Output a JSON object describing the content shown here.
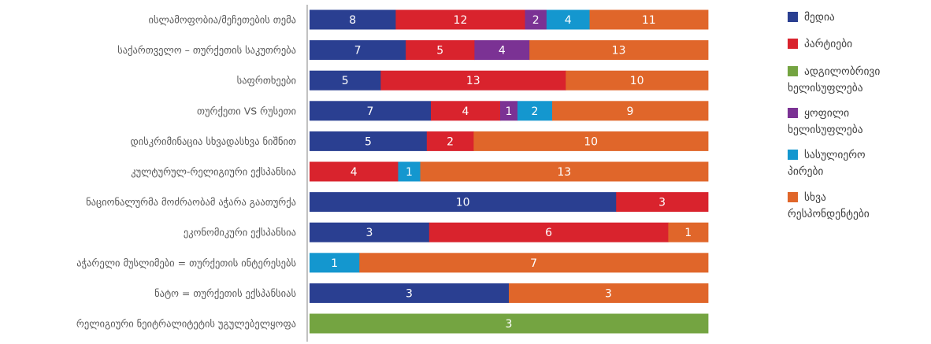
{
  "chart_data": {
    "type": "bar",
    "orientation": "horizontal",
    "stacked": "100%",
    "legend_position": "right",
    "grid": false,
    "categories": [
      "ისლამოფობია/მეჩეთების თემა",
      "საქართველო – თურქეთის საკუთრება",
      "საფრთხეები",
      "თურქეთი VS რუსეთი",
      "დისკრიმინაცია სხვადასხვა ნიშნით",
      "კულტურულ-რელიგიური ექსპანსია",
      "ნაციონალურმა მოძრაობამ აჭარა გაათურქა",
      "ეკონომიკური ექსპანსია",
      "აჭარელი მუსლიმები = თურქეთის ინტერესებს",
      "ნატო = თურქეთის ექსპანსიას",
      "რელიგიური ნეიტრალიტეტის უგულებელყოფა"
    ],
    "series": [
      {
        "name": "მედია",
        "color": "#2a3f91",
        "values": [
          8,
          7,
          5,
          7,
          5,
          0,
          10,
          3,
          0,
          3,
          0
        ]
      },
      {
        "name": "პარტიები",
        "color": "#d9232d",
        "values": [
          12,
          5,
          13,
          4,
          2,
          4,
          3,
          6,
          0,
          0,
          0
        ]
      },
      {
        "name": "ადგილობრივი ხელისუფლება",
        "color": "#74a441",
        "values": [
          0,
          0,
          0,
          0,
          0,
          0,
          0,
          0,
          0,
          0,
          3
        ]
      },
      {
        "name": "ყოფილი ხელისუფლება",
        "color": "#7b3294",
        "values": [
          2,
          4,
          0,
          1,
          0,
          0,
          0,
          0,
          0,
          0,
          0
        ]
      },
      {
        "name": "სასულიერო პირები",
        "color": "#1497cf",
        "values": [
          4,
          0,
          0,
          2,
          0,
          1,
          0,
          0,
          1,
          0,
          0
        ]
      },
      {
        "name": "სხვა რესპონდენტები",
        "color": "#e0662a",
        "values": [
          11,
          13,
          10,
          9,
          10,
          13,
          0,
          1,
          7,
          3,
          0
        ]
      }
    ],
    "legend_lines": [
      [
        "მედია"
      ],
      [
        "პარტიები"
      ],
      [
        "ადგილობრივი",
        "ხელისუფლება"
      ],
      [
        "ყოფილი",
        "ხელისუფლება"
      ],
      [
        "სასულიერო",
        "პირები"
      ],
      [
        "სხვა",
        "რესპონდენტები"
      ]
    ]
  }
}
